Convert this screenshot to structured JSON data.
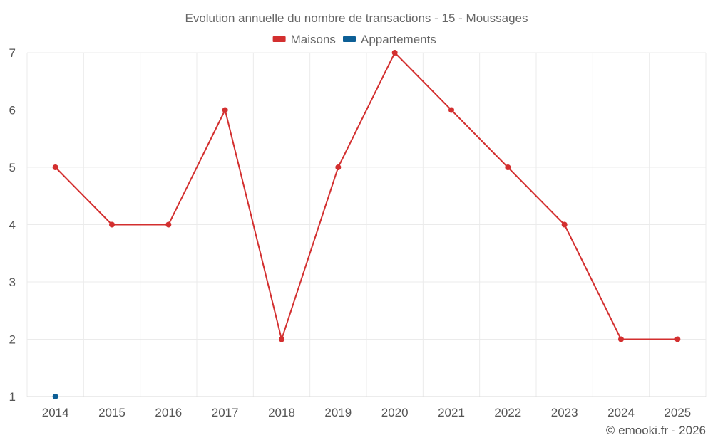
{
  "chart_data": {
    "type": "line",
    "title": "Evolution annuelle du nombre de transactions - 15 - Moussages",
    "xlabel": "",
    "ylabel": "",
    "categories": [
      "2014",
      "2015",
      "2016",
      "2017",
      "2018",
      "2019",
      "2020",
      "2021",
      "2022",
      "2023",
      "2024",
      "2025"
    ],
    "yticks": [
      "1",
      "2",
      "3",
      "4",
      "5",
      "6",
      "7"
    ],
    "ylim": [
      1,
      7
    ],
    "grid": true,
    "legend_position": "top-center",
    "series": [
      {
        "name": "Maisons",
        "color": "#d32f2f",
        "values": [
          5,
          4,
          4,
          6,
          2,
          5,
          7,
          6,
          5,
          4,
          2,
          2
        ]
      },
      {
        "name": "Appartements",
        "color": "#0d5f96",
        "values": [
          1,
          null,
          null,
          null,
          null,
          null,
          null,
          null,
          null,
          null,
          null,
          null
        ]
      }
    ]
  },
  "credit": "© emooki.fr - 2026"
}
